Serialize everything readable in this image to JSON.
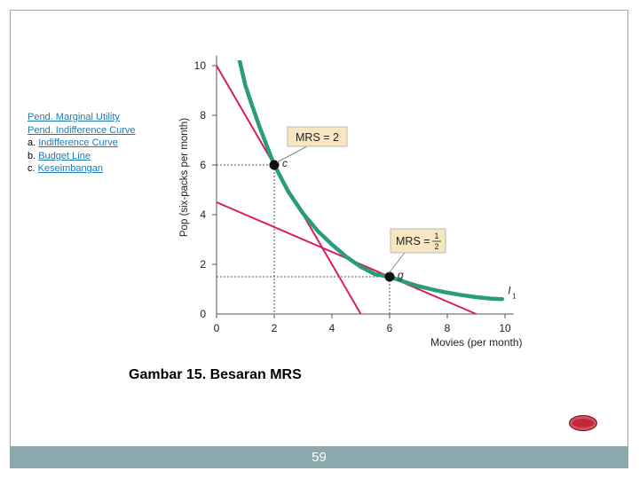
{
  "nav": {
    "items": [
      {
        "prefix": "",
        "link": "Pend. Marginal Utility"
      },
      {
        "prefix": "",
        "link": "Pend. Indifference Curve"
      },
      {
        "prefix": "a. ",
        "link": "Indifference Curve"
      },
      {
        "prefix": "b. ",
        "link": "Budget Line"
      },
      {
        "prefix": "c. ",
        "link": "Keseimbangan"
      }
    ]
  },
  "caption": "Gambar 15. Besaran MRS",
  "footer": {
    "page_number": "59"
  },
  "chart_data": {
    "type": "line",
    "xlabel": "Movies (per month)",
    "ylabel": "Pop (six-packs per month)",
    "xlim": [
      0,
      10
    ],
    "ylim": [
      0,
      10
    ],
    "xticks": [
      0,
      2,
      4,
      6,
      8,
      10
    ],
    "yticks": [
      0,
      2,
      4,
      6,
      8,
      10
    ],
    "grid": false,
    "colors": {
      "curve": "#2a9d78",
      "tangent": "#d81b6a",
      "label_box": "#f7e6bf",
      "label_border": "#b8b8b8"
    },
    "series": [
      {
        "name": "I1",
        "kind": "indifference-curve",
        "x": [
          0.8,
          1.0,
          1.2,
          1.5,
          1.8,
          2.0,
          2.5,
          3.0,
          3.5,
          4.0,
          4.5,
          5.0,
          5.5,
          6.0,
          6.5,
          7.0,
          7.5,
          8.0,
          8.5,
          9.0,
          9.5,
          9.9
        ],
        "y": [
          10.2,
          9.2,
          8.5,
          7.5,
          6.6,
          6.0,
          4.9,
          4.05,
          3.35,
          2.8,
          2.3,
          1.9,
          1.6,
          1.5,
          1.3,
          1.12,
          0.98,
          0.86,
          0.76,
          0.68,
          0.62,
          0.6
        ]
      },
      {
        "name": "",
        "kind": "tangent",
        "x": [
          0,
          5
        ],
        "y": [
          10,
          0
        ]
      },
      {
        "name": "",
        "kind": "tangent",
        "x": [
          0,
          9
        ],
        "y": [
          4.5,
          0
        ]
      }
    ],
    "points": [
      {
        "label": "c",
        "x": 2,
        "y": 6
      },
      {
        "label": "g",
        "x": 6,
        "y": 1.5
      }
    ],
    "annotations": [
      {
        "text": "MRS = 2",
        "point": "c"
      },
      {
        "text": "MRS = ",
        "num": "1",
        "den": "2",
        "point": "g"
      }
    ],
    "curve_label": {
      "main": "I",
      "sub": "1"
    }
  }
}
